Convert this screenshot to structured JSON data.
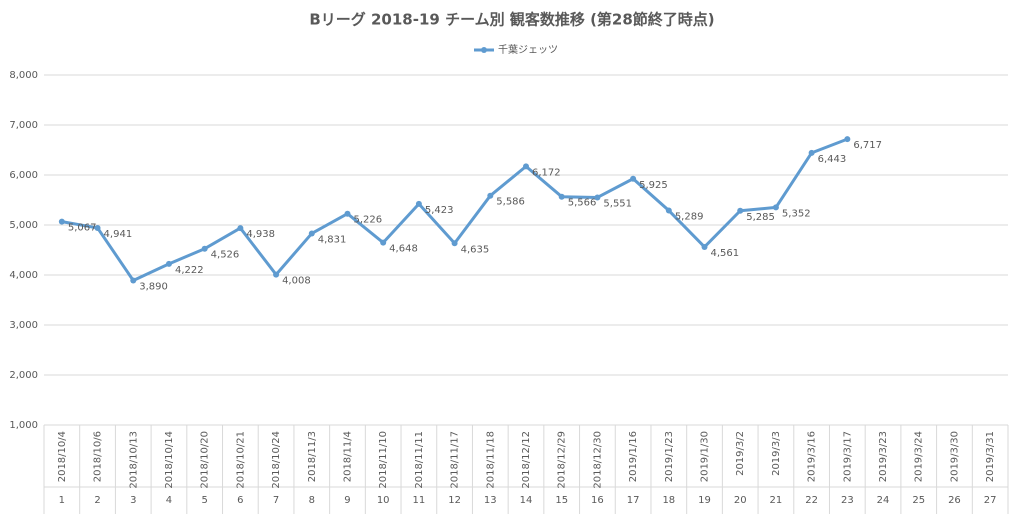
{
  "chart_data": {
    "type": "line",
    "title": "Bリーグ 2018-19 チーム別 観客数推移 (第28節終了時点)",
    "categories": [
      "2018/10/4",
      "2018/10/6",
      "2018/10/13",
      "2018/10/14",
      "2018/10/20",
      "2018/10/21",
      "2018/10/24",
      "2018/11/3",
      "2018/11/4",
      "2018/11/10",
      "2018/11/11",
      "2018/11/17",
      "2018/11/18",
      "2018/12/12",
      "2018/12/29",
      "2018/12/30",
      "2019/1/16",
      "2019/1/23",
      "2019/1/30",
      "2019/3/2",
      "2019/3/3",
      "2019/3/16",
      "2019/3/17",
      "2019/3/23",
      "2019/3/24",
      "2019/3/30",
      "2019/3/31"
    ],
    "game_numbers": [
      "1",
      "2",
      "3",
      "4",
      "5",
      "6",
      "7",
      "8",
      "9",
      "10",
      "11",
      "12",
      "13",
      "14",
      "15",
      "16",
      "17",
      "18",
      "19",
      "20",
      "21",
      "22",
      "23",
      "24",
      "25",
      "26",
      "27"
    ],
    "series": [
      {
        "name": "千葉ジェッツ",
        "color": "#5f9bd0",
        "values": [
          5067,
          4941,
          3890,
          4222,
          4526,
          4938,
          4008,
          4831,
          5226,
          4648,
          5423,
          4635,
          5586,
          6172,
          5566,
          5551,
          5925,
          5289,
          4561,
          5285,
          5352,
          6443,
          6717,
          null,
          null,
          null,
          null
        ],
        "value_labels": [
          "5,067",
          "4,941",
          "3,890",
          "4,222",
          "4,526",
          "4,938",
          "4,008",
          "4,831",
          "5,226",
          "4,648",
          "5,423",
          "4,635",
          "5,586",
          "6,172",
          "5,566",
          "5,551",
          "5,925",
          "5,289",
          "4,561",
          "5,285",
          "5,352",
          "6,443",
          "6,717",
          null,
          null,
          null,
          null
        ]
      }
    ],
    "ylim": [
      1000,
      8000
    ],
    "yticks": [
      {
        "value": 1000,
        "label": "1,000"
      },
      {
        "value": 2000,
        "label": "2,000"
      },
      {
        "value": 3000,
        "label": "3,000"
      },
      {
        "value": 4000,
        "label": "4,000"
      },
      {
        "value": 5000,
        "label": "5,000"
      },
      {
        "value": 6000,
        "label": "6,000"
      },
      {
        "value": 7000,
        "label": "7,000"
      },
      {
        "value": 8000,
        "label": "8,000"
      }
    ],
    "grid": true,
    "legend": "top"
  }
}
